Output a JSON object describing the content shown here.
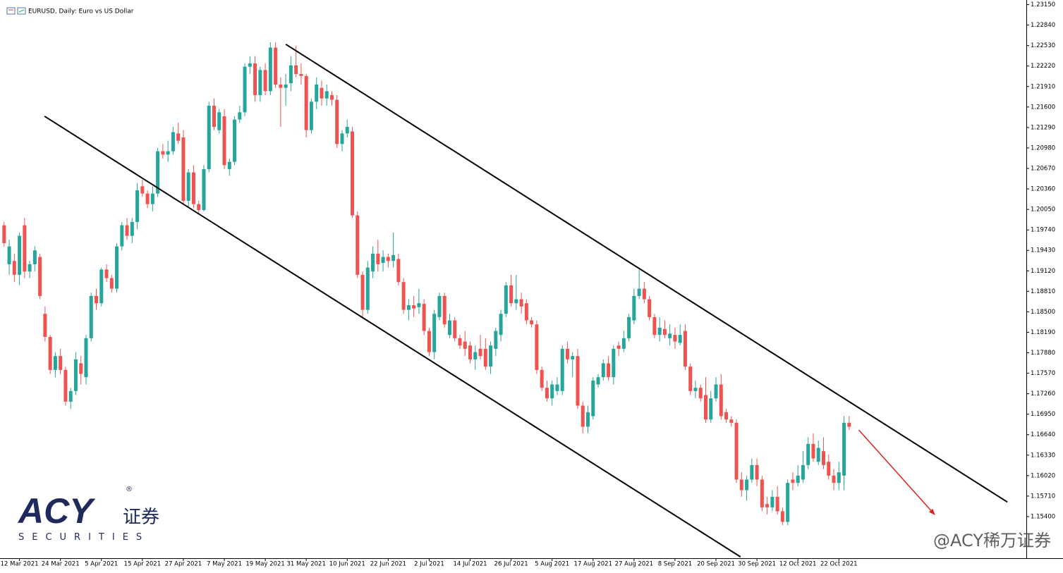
{
  "chart_data": {
    "type": "candlestick",
    "title": "EURUSD, Daily:  Euro vs US Dollar",
    "up_color": "#26a69a",
    "down_color": "#ef5350",
    "xlim": [
      -0.8,
      199.6
    ],
    "ylim": [
      1.1477,
      1.2322
    ],
    "yticks": [
      {
        "value": 1.2315,
        "label": "1.23150"
      },
      {
        "value": 1.2284,
        "label": "1.22840"
      },
      {
        "value": 1.2253,
        "label": "1.22530"
      },
      {
        "value": 1.2222,
        "label": "1.22220"
      },
      {
        "value": 1.2191,
        "label": "1.21910"
      },
      {
        "value": 1.216,
        "label": "1.21600"
      },
      {
        "value": 1.2129,
        "label": "1.21290"
      },
      {
        "value": 1.2098,
        "label": "1.20980"
      },
      {
        "value": 1.2067,
        "label": "1.20670"
      },
      {
        "value": 1.2036,
        "label": "1.20360"
      },
      {
        "value": 1.2005,
        "label": "1.20050"
      },
      {
        "value": 1.1974,
        "label": "1.19740"
      },
      {
        "value": 1.1943,
        "label": "1.19430"
      },
      {
        "value": 1.1912,
        "label": "1.19120"
      },
      {
        "value": 1.1881,
        "label": "1.18810"
      },
      {
        "value": 1.185,
        "label": "1.18500"
      },
      {
        "value": 1.1819,
        "label": "1.18190"
      },
      {
        "value": 1.1788,
        "label": "1.17880"
      },
      {
        "value": 1.1757,
        "label": "1.17570"
      },
      {
        "value": 1.1726,
        "label": "1.17260"
      },
      {
        "value": 1.1695,
        "label": "1.16950"
      },
      {
        "value": 1.1664,
        "label": "1.16640"
      },
      {
        "value": 1.1633,
        "label": "1.16330"
      },
      {
        "value": 1.1602,
        "label": "1.16020"
      },
      {
        "value": 1.1571,
        "label": "1.15710"
      },
      {
        "value": 1.154,
        "label": "1.15400"
      }
    ],
    "xticks": [
      {
        "value": 3,
        "label": "12 Mar 2021"
      },
      {
        "value": 11,
        "label": "24 Mar 2021"
      },
      {
        "value": 19,
        "label": "5 Apr 2021"
      },
      {
        "value": 27,
        "label": "15 Apr 2021"
      },
      {
        "value": 35,
        "label": "27 Apr 2021"
      },
      {
        "value": 43,
        "label": "7 May 2021"
      },
      {
        "value": 51,
        "label": "19 May 2021"
      },
      {
        "value": 59,
        "label": "31 May 2021"
      },
      {
        "value": 67,
        "label": "10 Jun 2021"
      },
      {
        "value": 75,
        "label": "22 Jun 2021"
      },
      {
        "value": 83,
        "label": "2 Jul 2021"
      },
      {
        "value": 91,
        "label": "14 Jul 2021"
      },
      {
        "value": 99,
        "label": "26 Jul 2021"
      },
      {
        "value": 107,
        "label": "5 Aug 2021"
      },
      {
        "value": 115,
        "label": "17 Aug 2021"
      },
      {
        "value": 123,
        "label": "27 Aug 2021"
      },
      {
        "value": 131,
        "label": "8 Sep 2021"
      },
      {
        "value": 139,
        "label": "20 Sep 2021"
      },
      {
        "value": 147,
        "label": "30 Sep 2021"
      },
      {
        "value": 155,
        "label": "12 Oct 2021"
      },
      {
        "value": 163,
        "label": "22 Oct 2021"
      }
    ],
    "ohlc": [
      [
        1.1981,
        1.1986,
        1.1949,
        1.1954
      ],
      [
        1.1922,
        1.1959,
        1.1906,
        1.1949
      ],
      [
        1.1927,
        1.1938,
        1.1895,
        1.1906
      ],
      [
        1.1906,
        1.197,
        1.189,
        1.1965
      ],
      [
        1.1981,
        1.1992,
        1.1901,
        1.1911
      ],
      [
        1.1911,
        1.1927,
        1.1901,
        1.1922
      ],
      [
        1.1922,
        1.1949,
        1.1911,
        1.1943
      ],
      [
        1.1933,
        1.1938,
        1.1869,
        1.1874
      ],
      [
        1.1847,
        1.1858,
        1.1805,
        1.1812
      ],
      [
        1.1812,
        1.1815,
        1.1756,
        1.1762
      ],
      [
        1.1762,
        1.1789,
        1.1751,
        1.1783
      ],
      [
        1.1783,
        1.1794,
        1.1756,
        1.1762
      ],
      [
        1.1762,
        1.1767,
        1.1708,
        1.1714
      ],
      [
        1.1714,
        1.1735,
        1.1703,
        1.173
      ],
      [
        1.173,
        1.1789,
        1.1724,
        1.1778
      ],
      [
        1.1772,
        1.1783,
        1.174,
        1.1756
      ],
      [
        1.1751,
        1.1815,
        1.174,
        1.181
      ],
      [
        1.181,
        1.1879,
        1.1805,
        1.1874
      ],
      [
        1.1874,
        1.1885,
        1.1853,
        1.1863
      ],
      [
        1.1863,
        1.1917,
        1.1858,
        1.1914
      ],
      [
        1.1914,
        1.1922,
        1.1895,
        1.1901
      ],
      [
        1.1901,
        1.1906,
        1.1879,
        1.1885
      ],
      [
        1.1885,
        1.1954,
        1.1879,
        1.1949
      ],
      [
        1.1949,
        1.1986,
        1.1943,
        1.1981
      ],
      [
        1.1981,
        1.1992,
        1.1959,
        1.1965
      ],
      [
        1.1965,
        1.1992,
        1.1954,
        1.1986
      ],
      [
        1.1986,
        1.2045,
        1.1975,
        1.2034
      ],
      [
        1.204,
        1.205,
        1.2024,
        1.2029
      ],
      [
        1.2029,
        1.2034,
        1.2007,
        1.2013
      ],
      [
        1.2013,
        1.204,
        1.2002,
        1.2029
      ],
      [
        1.2029,
        1.2098,
        1.2024,
        1.2093
      ],
      [
        1.2093,
        1.2104,
        1.2082,
        1.2088
      ],
      [
        1.2088,
        1.2109,
        1.2077,
        1.2093
      ],
      [
        1.2093,
        1.213,
        1.2088,
        1.2122
      ],
      [
        1.212,
        1.2136,
        1.2104,
        1.2109
      ],
      [
        1.2114,
        1.2125,
        1.2013,
        1.2018
      ],
      [
        1.2018,
        1.2066,
        1.2007,
        1.2061
      ],
      [
        1.2061,
        1.2072,
        1.2007,
        1.2013
      ],
      [
        1.2013,
        1.2018,
        1.1997,
        1.2004
      ],
      [
        1.2004,
        1.2072,
        1.2002,
        1.2066
      ],
      [
        1.2066,
        1.2168,
        1.2061,
        1.2162
      ],
      [
        1.2162,
        1.2173,
        1.2125,
        1.213
      ],
      [
        1.2125,
        1.2157,
        1.212,
        1.2152
      ],
      [
        1.2146,
        1.2157,
        1.2066,
        1.2072
      ],
      [
        1.2066,
        1.2082,
        1.2056,
        1.2077
      ],
      [
        1.2077,
        1.2146,
        1.2072,
        1.2141
      ],
      [
        1.2141,
        1.2162,
        1.2136,
        1.2152
      ],
      [
        1.2152,
        1.2226,
        1.2146,
        1.2221
      ],
      [
        1.2221,
        1.2237,
        1.221,
        1.2226
      ],
      [
        1.2226,
        1.2237,
        1.2168,
        1.2178
      ],
      [
        1.2178,
        1.2221,
        1.2168,
        1.2216
      ],
      [
        1.2216,
        1.2226,
        1.2178,
        1.2184
      ],
      [
        1.2184,
        1.2258,
        1.2178,
        1.225
      ],
      [
        1.225,
        1.2258,
        1.2189,
        1.2194
      ],
      [
        1.2194,
        1.2205,
        1.213,
        1.2189
      ],
      [
        1.2189,
        1.221,
        1.2162,
        1.2194
      ],
      [
        1.2196,
        1.2237,
        1.2184,
        1.2223
      ],
      [
        1.2223,
        1.2253,
        1.2205,
        1.221
      ],
      [
        1.221,
        1.2226,
        1.2194,
        1.2207
      ],
      [
        1.2207,
        1.221,
        1.2114,
        1.2125
      ],
      [
        1.2125,
        1.2173,
        1.212,
        1.2168
      ],
      [
        1.2168,
        1.2205,
        1.2157,
        1.2194
      ],
      [
        1.2189,
        1.22,
        1.2162,
        1.2173
      ],
      [
        1.2173,
        1.2194,
        1.2162,
        1.2184
      ],
      [
        1.2178,
        1.2184,
        1.2162,
        1.2171
      ],
      [
        1.2171,
        1.2178,
        1.2098,
        1.2104
      ],
      [
        1.2104,
        1.2125,
        1.2093,
        1.212
      ],
      [
        1.212,
        1.2141,
        1.2114,
        1.213
      ],
      [
        1.2123,
        1.213,
        1.1992,
        1.1996
      ],
      [
        1.1996,
        1.2002,
        1.1901,
        1.1906
      ],
      [
        1.1906,
        1.1911,
        1.1842,
        1.1853
      ],
      [
        1.1853,
        1.1927,
        1.1847,
        1.1917
      ],
      [
        1.1911,
        1.1949,
        1.1901,
        1.1938
      ],
      [
        1.1938,
        1.1959,
        1.1911,
        1.1922
      ],
      [
        1.1924,
        1.1943,
        1.1911,
        1.1933
      ],
      [
        1.1933,
        1.1938,
        1.1917,
        1.1927
      ],
      [
        1.1927,
        1.197,
        1.1917,
        1.1936
      ],
      [
        1.193,
        1.1938,
        1.189,
        1.1895
      ],
      [
        1.1895,
        1.1901,
        1.1847,
        1.1853
      ],
      [
        1.1853,
        1.1869,
        1.1837,
        1.186
      ],
      [
        1.186,
        1.1874,
        1.1842,
        1.1855
      ],
      [
        1.1857,
        1.1885,
        1.1847,
        1.1863
      ],
      [
        1.1862,
        1.1869,
        1.1815,
        1.1821
      ],
      [
        1.1821,
        1.1826,
        1.1783,
        1.1789
      ],
      [
        1.1789,
        1.1853,
        1.1778,
        1.1847
      ],
      [
        1.1842,
        1.1879,
        1.1837,
        1.1874
      ],
      [
        1.1874,
        1.1879,
        1.1826,
        1.1831
      ],
      [
        1.1815,
        1.1847,
        1.181,
        1.1837
      ],
      [
        1.1837,
        1.1842,
        1.1805,
        1.181
      ],
      [
        1.181,
        1.1815,
        1.1794,
        1.1799
      ],
      [
        1.1805,
        1.1821,
        1.1783,
        1.1794
      ],
      [
        1.1799,
        1.1805,
        1.1772,
        1.1778
      ],
      [
        1.1778,
        1.1799,
        1.1762,
        1.1789
      ],
      [
        1.1794,
        1.1815,
        1.1778,
        1.1783
      ],
      [
        1.1794,
        1.181,
        1.1762,
        1.1767
      ],
      [
        1.1767,
        1.1805,
        1.1756,
        1.1799
      ],
      [
        1.1794,
        1.1826,
        1.1783,
        1.1821
      ],
      [
        1.1815,
        1.1853,
        1.1805,
        1.1847
      ],
      [
        1.1847,
        1.1895,
        1.1842,
        1.189
      ],
      [
        1.189,
        1.1906,
        1.1858,
        1.1863
      ],
      [
        1.1863,
        1.1906,
        1.1853,
        1.1869
      ],
      [
        1.1869,
        1.1879,
        1.1847,
        1.1858
      ],
      [
        1.1863,
        1.1869,
        1.1831,
        1.1837
      ],
      [
        1.1837,
        1.1842,
        1.1826,
        1.1831
      ],
      [
        1.1831,
        1.1837,
        1.1756,
        1.1762
      ],
      [
        1.1762,
        1.1767,
        1.173,
        1.1735
      ],
      [
        1.1735,
        1.1746,
        1.1714,
        1.1719
      ],
      [
        1.1719,
        1.1746,
        1.1708,
        1.174
      ],
      [
        1.173,
        1.1751,
        1.1724,
        1.174
      ],
      [
        1.173,
        1.1799,
        1.1724,
        1.1794
      ],
      [
        1.1794,
        1.1805,
        1.1772,
        1.1778
      ],
      [
        1.1778,
        1.1789,
        1.1751,
        1.1783
      ],
      [
        1.1783,
        1.1794,
        1.1703,
        1.1708
      ],
      [
        1.1708,
        1.1714,
        1.1666,
        1.1676
      ],
      [
        1.1676,
        1.1708,
        1.1666,
        1.1698
      ],
      [
        1.1692,
        1.1751,
        1.1687,
        1.1746
      ],
      [
        1.174,
        1.1756,
        1.1735,
        1.1751
      ],
      [
        1.1751,
        1.1778,
        1.1746,
        1.1772
      ],
      [
        1.1772,
        1.1783,
        1.1746,
        1.1751
      ],
      [
        1.1751,
        1.1799,
        1.174,
        1.1794
      ],
      [
        1.1799,
        1.1805,
        1.1783,
        1.1794
      ],
      [
        1.1794,
        1.1821,
        1.1789,
        1.181
      ],
      [
        1.181,
        1.1847,
        1.1805,
        1.1842
      ],
      [
        1.1837,
        1.1885,
        1.1831,
        1.1874
      ],
      [
        1.1874,
        1.1914,
        1.1869,
        1.1885
      ],
      [
        1.1885,
        1.1895,
        1.1863,
        1.1869
      ],
      [
        1.1869,
        1.1874,
        1.1837,
        1.1842
      ],
      [
        1.1842,
        1.1847,
        1.181,
        1.1815
      ],
      [
        1.1815,
        1.1842,
        1.1805,
        1.1826
      ],
      [
        1.1824,
        1.1837,
        1.181,
        1.1815
      ],
      [
        1.181,
        1.1831,
        1.1799,
        1.1817
      ],
      [
        1.1815,
        1.1826,
        1.1794,
        1.1805
      ],
      [
        1.1803,
        1.1831,
        1.1799,
        1.1815
      ],
      [
        1.1821,
        1.1831,
        1.1762,
        1.1767
      ],
      [
        1.1767,
        1.1772,
        1.1724,
        1.173
      ],
      [
        1.173,
        1.1746,
        1.1719,
        1.1735
      ],
      [
        1.1735,
        1.174,
        1.1714,
        1.1719
      ],
      [
        1.1724,
        1.1751,
        1.1682,
        1.1687
      ],
      [
        1.1687,
        1.173,
        1.1682,
        1.1719
      ],
      [
        1.1719,
        1.1751,
        1.1714,
        1.174
      ],
      [
        1.174,
        1.1756,
        1.1687,
        1.1692
      ],
      [
        1.1698,
        1.1703,
        1.1682,
        1.1687
      ],
      [
        1.1687,
        1.1692,
        1.1676,
        1.1682
      ],
      [
        1.1682,
        1.1687,
        1.1591,
        1.1596
      ],
      [
        1.1596,
        1.1607,
        1.157,
        1.158
      ],
      [
        1.158,
        1.1602,
        1.1564,
        1.1596
      ],
      [
        1.1596,
        1.1628,
        1.1591,
        1.1618
      ],
      [
        1.1618,
        1.1628,
        1.1586,
        1.1596
      ],
      [
        1.1596,
        1.1602,
        1.1548,
        1.1554
      ],
      [
        1.1559,
        1.157,
        1.1543,
        1.1554
      ],
      [
        1.1554,
        1.158,
        1.1548,
        1.157
      ],
      [
        1.157,
        1.1586,
        1.1543,
        1.1548
      ],
      [
        1.1548,
        1.1554,
        1.1527,
        1.1532
      ],
      [
        1.1532,
        1.1596,
        1.1527,
        1.1591
      ],
      [
        1.1596,
        1.1607,
        1.158,
        1.1591
      ],
      [
        1.1591,
        1.1618,
        1.1586,
        1.1602
      ],
      [
        1.1596,
        1.1639,
        1.1591,
        1.1618
      ],
      [
        1.1618,
        1.166,
        1.1612,
        1.165
      ],
      [
        1.165,
        1.1666,
        1.1623,
        1.1628
      ],
      [
        1.1623,
        1.1655,
        1.1618,
        1.1644
      ],
      [
        1.1639,
        1.166,
        1.1612,
        1.1618
      ],
      [
        1.1623,
        1.1634,
        1.1596,
        1.1602
      ],
      [
        1.1602,
        1.1612,
        1.158,
        1.1591
      ],
      [
        1.1591,
        1.1623,
        1.158,
        1.1607
      ],
      [
        1.1602,
        1.1692,
        1.158,
        1.1682
      ],
      [
        1.1682,
        1.1692,
        1.1671,
        1.1676
      ]
    ],
    "trendlines": [
      {
        "x": [
          7.9,
          143.8
        ],
        "y": [
          1.2146,
          1.1479
        ],
        "color": "#000000"
      },
      {
        "x": [
          55.0,
          195.9
        ],
        "y": [
          1.2255,
          1.1562
        ],
        "color": "#000000"
      },
      {
        "x": [
          166.9,
          181.7
        ],
        "y": [
          1.1671,
          1.1543
        ],
        "color": "#e02020",
        "arrow": true
      }
    ],
    "logo": {
      "mark": "ACY",
      "registered": "®",
      "subtitle": "证券",
      "tagline": "SECURITIES"
    },
    "watermark": "@ACY稀万证券"
  }
}
